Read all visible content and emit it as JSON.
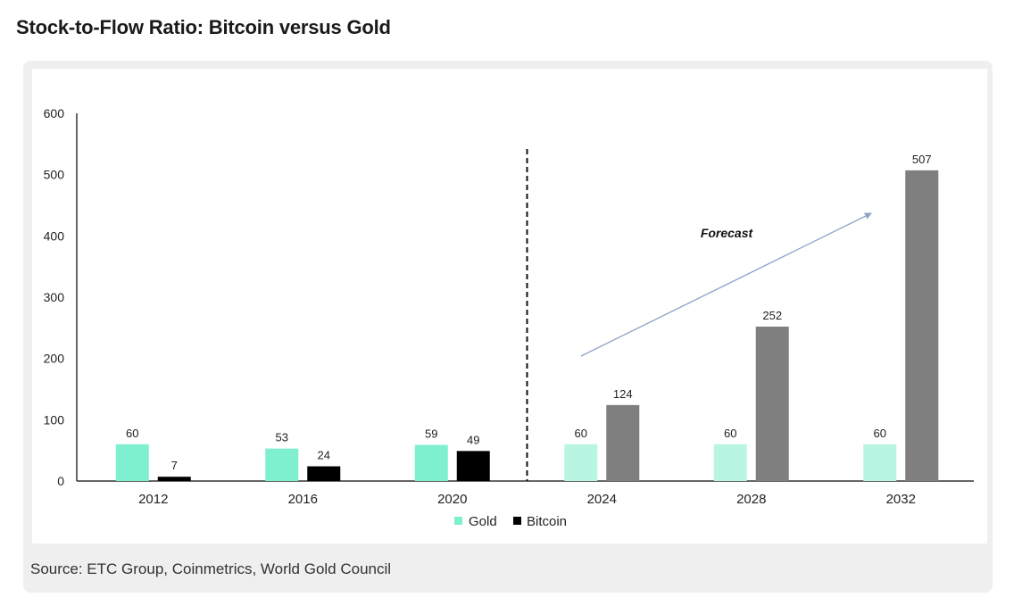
{
  "title": "Stock-to-Flow Ratio: Bitcoin versus Gold",
  "source": "Source: ETC Group, Coinmetrics, World Gold Council",
  "annotation": "Forecast",
  "colors": {
    "gold": "#7ff0cf",
    "gold_forecast": "#b8f5e2",
    "bitcoin": "#000000",
    "bitcoin_forecast": "#7f7f7f",
    "arrow": "#8da3c7"
  },
  "chart_data": {
    "type": "bar",
    "categories": [
      "2012",
      "2016",
      "2020",
      "2024",
      "2028",
      "2032"
    ],
    "series": [
      {
        "name": "Gold",
        "values": [
          60,
          53,
          59,
          60,
          60,
          60
        ]
      },
      {
        "name": "Bitcoin",
        "values": [
          7,
          24,
          49,
          124,
          252,
          507
        ]
      }
    ],
    "forecast_from_index": 3,
    "ylim": [
      0,
      600
    ],
    "yticks": [
      0,
      100,
      200,
      300,
      400,
      500,
      600
    ],
    "legend": [
      "Gold",
      "Bitcoin"
    ],
    "legend_position": "bottom",
    "grid": false
  }
}
